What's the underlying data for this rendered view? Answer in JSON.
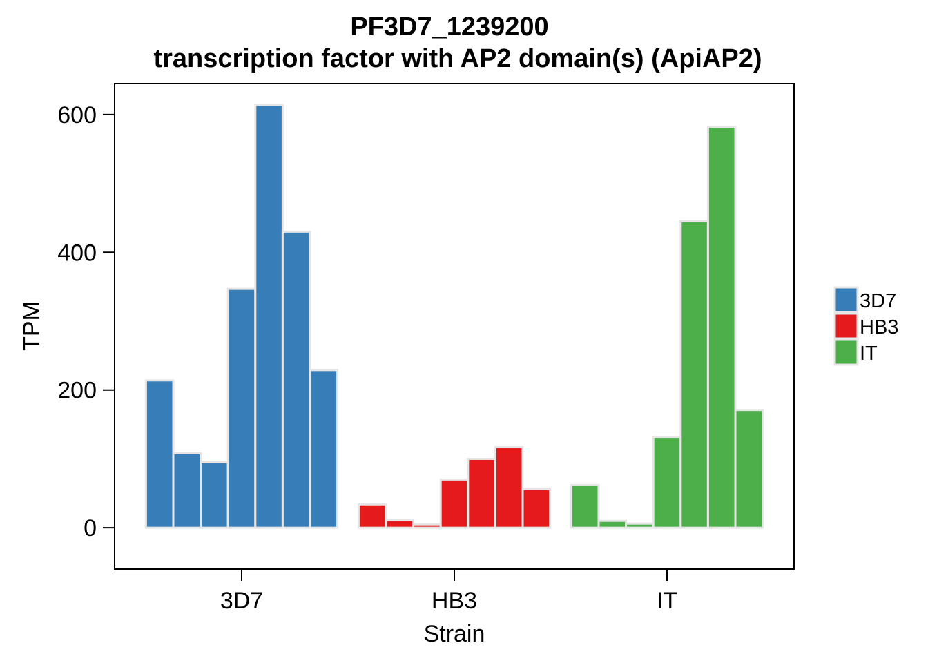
{
  "chart_data": {
    "type": "bar",
    "title": "PF3D7_1239200",
    "subtitle": "transcription factor with AP2 domain(s) (ApiAP2)",
    "xlabel": "Strain",
    "ylabel": "TPM",
    "ylim": [
      -60,
      645
    ],
    "yticks": [
      0,
      200,
      400,
      600
    ],
    "categories": [
      "3D7",
      "HB3",
      "IT"
    ],
    "groups": [
      {
        "name": "3D7",
        "color": "#377EB8",
        "values": [
          214,
          108,
          95,
          347,
          614,
          430,
          229
        ]
      },
      {
        "name": "HB3",
        "color": "#E41A1C",
        "values": [
          34,
          11,
          5,
          70,
          100,
          117,
          56
        ]
      },
      {
        "name": "IT",
        "color": "#4DAF4A",
        "values": [
          62,
          10,
          6,
          132,
          445,
          582,
          171
        ]
      }
    ],
    "bar_outline": "#e6e6e6",
    "legend": {
      "position": "right",
      "entries": [
        {
          "label": "3D7",
          "color": "#377EB8"
        },
        {
          "label": "HB3",
          "color": "#E41A1C"
        },
        {
          "label": "IT",
          "color": "#4DAF4A"
        }
      ]
    },
    "grid": false
  }
}
